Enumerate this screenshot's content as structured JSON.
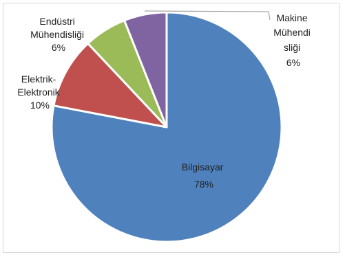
{
  "chart_data": {
    "type": "pie",
    "slices": [
      {
        "label_lines": [
          "Bilgisayar",
          "78%"
        ],
        "value": 78,
        "color": "#4f81bd"
      },
      {
        "label_lines": [
          "Elektrik-",
          "Elektronik",
          "10%"
        ],
        "value": 10,
        "color": "#c0504d"
      },
      {
        "label_lines": [
          "Endüstri",
          "Mühendisliği",
          "6%"
        ],
        "value": 6,
        "color": "#9bbb59"
      },
      {
        "label_lines": [
          "Makine",
          "Mühendi",
          "sliği",
          "6%"
        ],
        "value": 6,
        "color": "#8064a2"
      }
    ],
    "title": "",
    "legend": "none",
    "label_style": "category-name-and-percent"
  }
}
